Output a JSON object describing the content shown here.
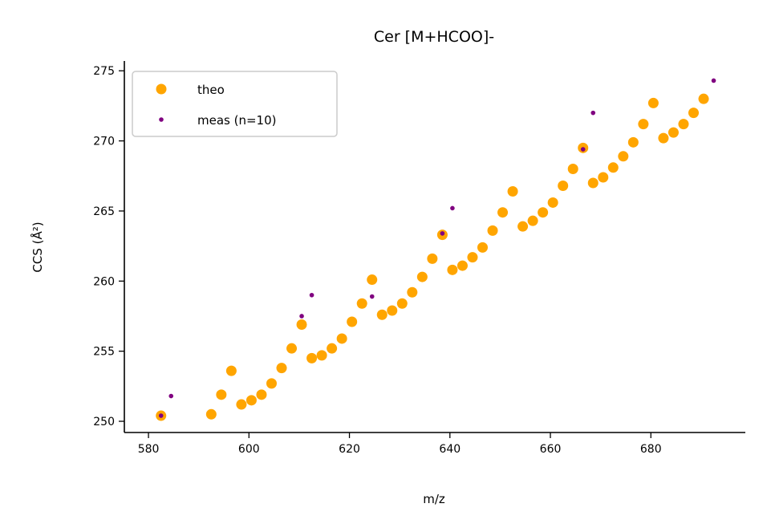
{
  "chart_data": {
    "type": "scatter",
    "title": "Cer [M+HCOO]-",
    "xlabel": "m/z",
    "ylabel": "CCS (Å²)",
    "xlim": [
      575.2,
      698.8
    ],
    "ylim": [
      249.2,
      275.7
    ],
    "x_ticks": [
      580,
      600,
      620,
      640,
      660,
      680
    ],
    "y_ticks": [
      250,
      255,
      260,
      265,
      270,
      275
    ],
    "grid": false,
    "legend": "top-left",
    "series": [
      {
        "name": "theo",
        "color": "#FFA500",
        "marker": "large-circle",
        "x": [
          582.5,
          592.5,
          594.5,
          596.5,
          598.5,
          600.5,
          602.5,
          604.5,
          606.5,
          608.5,
          610.5,
          612.5,
          614.5,
          616.5,
          618.5,
          620.5,
          622.5,
          624.5,
          626.5,
          628.5,
          630.5,
          632.5,
          634.5,
          636.5,
          638.5,
          640.5,
          642.5,
          644.5,
          646.5,
          648.5,
          650.5,
          652.5,
          654.5,
          656.5,
          658.5,
          660.5,
          662.5,
          664.5,
          666.5,
          668.5,
          670.5,
          672.5,
          674.5,
          676.5,
          678.5,
          680.5,
          682.5,
          684.5,
          686.5,
          688.5,
          690.5
        ],
        "y": [
          250.4,
          250.5,
          251.9,
          253.6,
          251.2,
          251.5,
          251.9,
          252.7,
          253.8,
          255.2,
          256.9,
          254.5,
          254.7,
          255.2,
          255.9,
          257.1,
          258.4,
          260.1,
          257.6,
          257.9,
          258.4,
          259.2,
          260.3,
          261.6,
          263.3,
          260.8,
          261.1,
          261.7,
          262.4,
          263.6,
          264.9,
          266.4,
          263.9,
          264.3,
          264.9,
          265.6,
          266.8,
          268.0,
          269.5,
          267.0,
          267.4,
          268.1,
          268.9,
          269.9,
          271.2,
          272.7,
          270.2,
          270.6,
          271.2,
          272.0,
          273.0
        ]
      },
      {
        "name": "meas (n=10)",
        "color": "#800080",
        "marker": "small-dot",
        "x": [
          582.5,
          584.5,
          610.5,
          612.5,
          624.5,
          638.5,
          640.5,
          666.5,
          668.5,
          692.5
        ],
        "y": [
          250.4,
          251.8,
          257.5,
          259.0,
          258.9,
          263.4,
          265.2,
          269.4,
          272.0,
          274.3
        ]
      }
    ]
  }
}
